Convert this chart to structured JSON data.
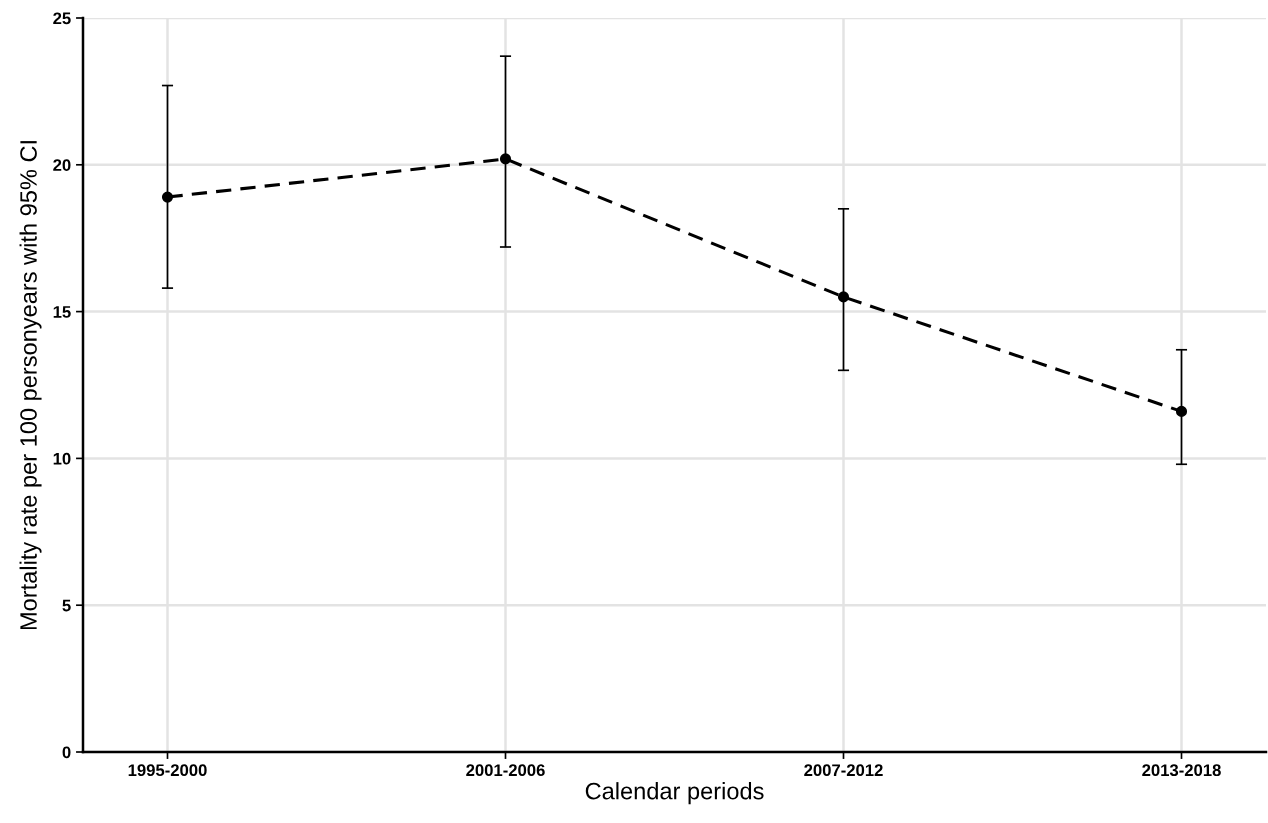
{
  "chart_data": {
    "type": "line",
    "xlabel": "Calendar periods",
    "ylabel": "Mortality rate per 100 personyears with 95% CI",
    "categories": [
      "1995-2000",
      "2001-2006",
      "2007-2012",
      "2013-2018"
    ],
    "values": [
      18.9,
      20.2,
      15.5,
      11.6
    ],
    "errors": [
      [
        15.8,
        22.7
      ],
      [
        17.2,
        23.7
      ],
      [
        13.0,
        18.5
      ],
      [
        9.8,
        13.7
      ]
    ],
    "color": "#000000",
    "marker": "circle",
    "line_style": "dashed",
    "ylim": [
      0,
      25
    ],
    "yticks": [
      0,
      5,
      10,
      15,
      20,
      25
    ],
    "grid": true
  }
}
